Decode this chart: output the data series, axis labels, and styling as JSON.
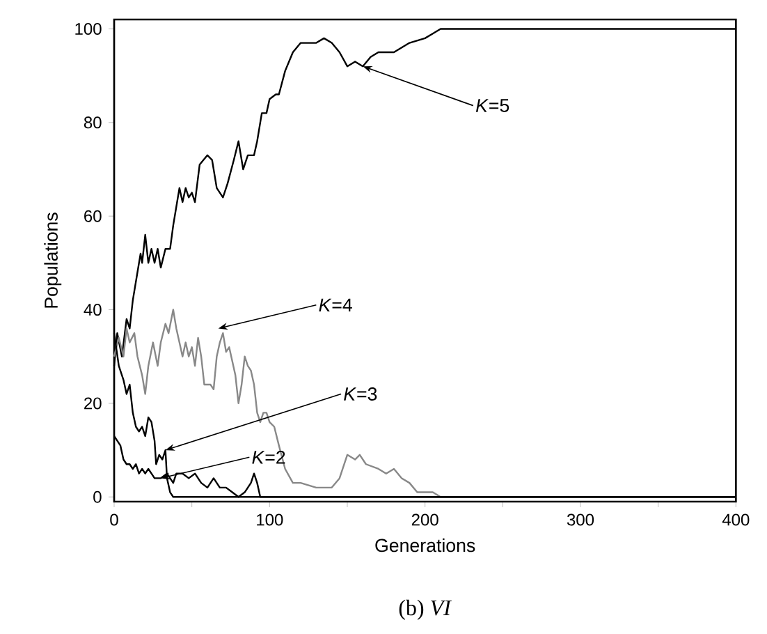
{
  "chart_data": {
    "type": "line",
    "xlabel": "Generations",
    "ylabel": "Populations",
    "xlim": [
      0,
      400
    ],
    "ylim": [
      -1,
      102
    ],
    "xticks": [
      0,
      {
        "value": 50,
        "label": null
      },
      100,
      {
        "value": 150,
        "label": null
      },
      200,
      {
        "value": 250,
        "label": null
      },
      300,
      {
        "value": 350,
        "label": null
      },
      400
    ],
    "yticks": [
      0,
      20,
      40,
      60,
      80,
      100
    ],
    "series": [
      {
        "color": "#000000",
        "x": [
          0,
          2,
          5,
          8,
          10,
          12,
          15,
          17,
          18,
          20,
          22,
          24,
          26,
          28,
          30,
          33,
          36,
          38,
          40,
          42,
          44,
          46,
          48,
          50,
          52,
          55,
          60,
          63,
          66,
          70,
          73,
          77,
          80,
          83,
          86,
          90,
          92,
          95,
          98,
          100,
          104,
          106,
          110,
          115,
          120,
          125,
          130,
          135,
          140,
          145,
          150,
          155,
          160,
          165,
          170,
          180,
          190,
          200,
          205,
          210,
          400
        ],
        "values": [
          28,
          35,
          30,
          38,
          36,
          42,
          48,
          52,
          50,
          56,
          50,
          53,
          50,
          53,
          49,
          53,
          53,
          58,
          62,
          66,
          63,
          66,
          64,
          65,
          63,
          71,
          73,
          72,
          66,
          64,
          67,
          72,
          76,
          70,
          73,
          73,
          76,
          82,
          82,
          85,
          86,
          86,
          91,
          95,
          97,
          97,
          97,
          98,
          97,
          95,
          92,
          93,
          92,
          94,
          95,
          95,
          97,
          98,
          99,
          100,
          100
        ]
      },
      {
        "color": "#888888",
        "x": [
          0,
          3,
          6,
          8,
          10,
          13,
          15,
          18,
          20,
          22,
          25,
          28,
          30,
          33,
          35,
          38,
          40,
          42,
          44,
          46,
          48,
          50,
          52,
          54,
          56,
          58,
          62,
          64,
          66,
          68,
          70,
          72,
          74,
          76,
          78,
          80,
          82,
          84,
          86,
          88,
          90,
          92,
          94,
          96,
          98,
          100,
          103,
          106,
          110,
          115,
          120,
          130,
          140,
          145,
          150,
          155,
          158,
          162,
          170,
          175,
          180,
          185,
          190,
          195,
          205,
          210,
          400
        ],
        "values": [
          30,
          34,
          30,
          36,
          33,
          35,
          30,
          26,
          22,
          28,
          33,
          28,
          33,
          37,
          35,
          40,
          36,
          33,
          30,
          33,
          30,
          32,
          28,
          34,
          30,
          24,
          24,
          23,
          30,
          33,
          35,
          31,
          32,
          29,
          26,
          20,
          24,
          30,
          28,
          27,
          24,
          18,
          16,
          18,
          18,
          16,
          15,
          11,
          6,
          3,
          3,
          2,
          2,
          4,
          9,
          8,
          9,
          7,
          6,
          5,
          6,
          4,
          3,
          1,
          1,
          0,
          0
        ]
      },
      {
        "color": "#000000",
        "x": [
          0,
          3,
          6,
          8,
          10,
          12,
          14,
          16,
          18,
          20,
          22,
          24,
          26,
          27,
          29,
          31,
          33,
          34,
          36,
          38,
          400
        ],
        "values": [
          35,
          28,
          25,
          22,
          24,
          18,
          15,
          14,
          15,
          13,
          17,
          16,
          12,
          7,
          9,
          8,
          10,
          4,
          1,
          0,
          0
        ]
      },
      {
        "color": "#000000",
        "x": [
          0,
          2,
          4,
          6,
          8,
          10,
          12,
          14,
          16,
          18,
          20,
          22,
          24,
          26,
          30,
          34,
          38,
          40,
          44,
          48,
          52,
          56,
          60,
          64,
          68,
          72,
          76,
          80,
          84,
          88,
          90,
          92,
          94,
          400
        ],
        "values": [
          13,
          12,
          11,
          8,
          7,
          7,
          6,
          7,
          5,
          6,
          5,
          6,
          5,
          4,
          4,
          5,
          3,
          5,
          5,
          4,
          5,
          3,
          2,
          4,
          2,
          2,
          1,
          0,
          1,
          3,
          5,
          3,
          0,
          0
        ]
      }
    ],
    "annotations": [
      {
        "text": "*K*=5",
        "x": 160,
        "y": 92
      },
      {
        "text": "*K*=4",
        "x": 67,
        "y": 36
      },
      {
        "text": "*K*=3",
        "x": 33,
        "y": 10
      },
      {
        "text": "*K*=2",
        "x": 30,
        "y": 4
      },
      "(b)  *VI*"
    ]
  }
}
